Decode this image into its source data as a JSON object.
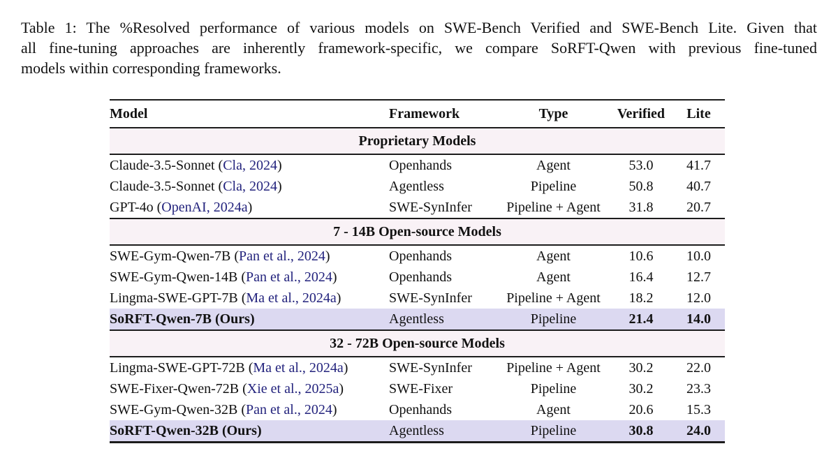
{
  "colors": {
    "citation_link": "#23237d",
    "section_header_bg": "#f9f2f6",
    "highlight_row_bg": "#dcd9f1",
    "rule": "#1c1c1c",
    "text": "#111111"
  },
  "caption": {
    "lines": [
      "Table 1: The %Resolved performance of various models on SWE-Bench Verified and SWE-Bench Lite. Given that",
      "all fine-tuning approaches are inherently framework-specific, we compare SoRFT-Qwen with previous fine-tuned",
      "models within corresponding frameworks."
    ]
  },
  "table": {
    "headers": [
      {
        "label": "Model"
      },
      {
        "label": "Framework"
      },
      {
        "label": "Type"
      },
      {
        "label": "Verified"
      },
      {
        "label": "Lite"
      }
    ],
    "sections": [
      {
        "title": "Proprietary Models",
        "rows": [
          {
            "model": "Claude-3.5-Sonnet",
            "citation": "Cla, 2024",
            "framework": "Openhands",
            "type": "Agent",
            "verified": "53.0",
            "lite": "41.7",
            "highlight": false
          },
          {
            "model": "Claude-3.5-Sonnet",
            "citation": "Cla, 2024",
            "framework": "Agentless",
            "type": "Pipeline",
            "verified": "50.8",
            "lite": "40.7",
            "highlight": false
          },
          {
            "model": "GPT-4o",
            "citation": "OpenAI, 2024a",
            "framework": "SWE-SynInfer",
            "type": "Pipeline + Agent",
            "verified": "31.8",
            "lite": "20.7",
            "highlight": false
          }
        ]
      },
      {
        "title": "7 - 14B Open-source Models",
        "rows": [
          {
            "model": "SWE-Gym-Qwen-7B",
            "citation": "Pan et al., 2024",
            "framework": "Openhands",
            "type": "Agent",
            "verified": "10.6",
            "lite": "10.0",
            "highlight": false
          },
          {
            "model": "SWE-Gym-Qwen-14B",
            "citation": "Pan et al., 2024",
            "framework": "Openhands",
            "type": "Agent",
            "verified": "16.4",
            "lite": "12.7",
            "highlight": false
          },
          {
            "model": "Lingma-SWE-GPT-7B",
            "citation": "Ma et al., 2024a",
            "framework": "SWE-SynInfer",
            "type": "Pipeline + Agent",
            "verified": "18.2",
            "lite": "12.0",
            "highlight": false
          },
          {
            "model": "SoRFT-Qwen-7B (Ours)",
            "citation": null,
            "framework": "Agentless",
            "type": "Pipeline",
            "verified": "21.4",
            "lite": "14.0",
            "highlight": true
          }
        ]
      },
      {
        "title": "32 - 72B Open-source Models",
        "rows": [
          {
            "model": "Lingma-SWE-GPT-72B",
            "citation": "Ma et al., 2024a",
            "framework": "SWE-SynInfer",
            "type": "Pipeline + Agent",
            "verified": "30.2",
            "lite": "22.0",
            "highlight": false
          },
          {
            "model": "SWE-Fixer-Qwen-72B",
            "citation": "Xie et al., 2025a",
            "framework": "SWE-Fixer",
            "type": "Pipeline",
            "verified": "30.2",
            "lite": "23.3",
            "highlight": false
          },
          {
            "model": "SWE-Gym-Qwen-32B",
            "citation": "Pan et al., 2024",
            "framework": "Openhands",
            "type": "Agent",
            "verified": "20.6",
            "lite": "15.3",
            "highlight": false
          },
          {
            "model": "SoRFT-Qwen-32B (Ours)",
            "citation": null,
            "framework": "Agentless",
            "type": "Pipeline",
            "verified": "30.8",
            "lite": "24.0",
            "highlight": true
          }
        ]
      }
    ]
  }
}
